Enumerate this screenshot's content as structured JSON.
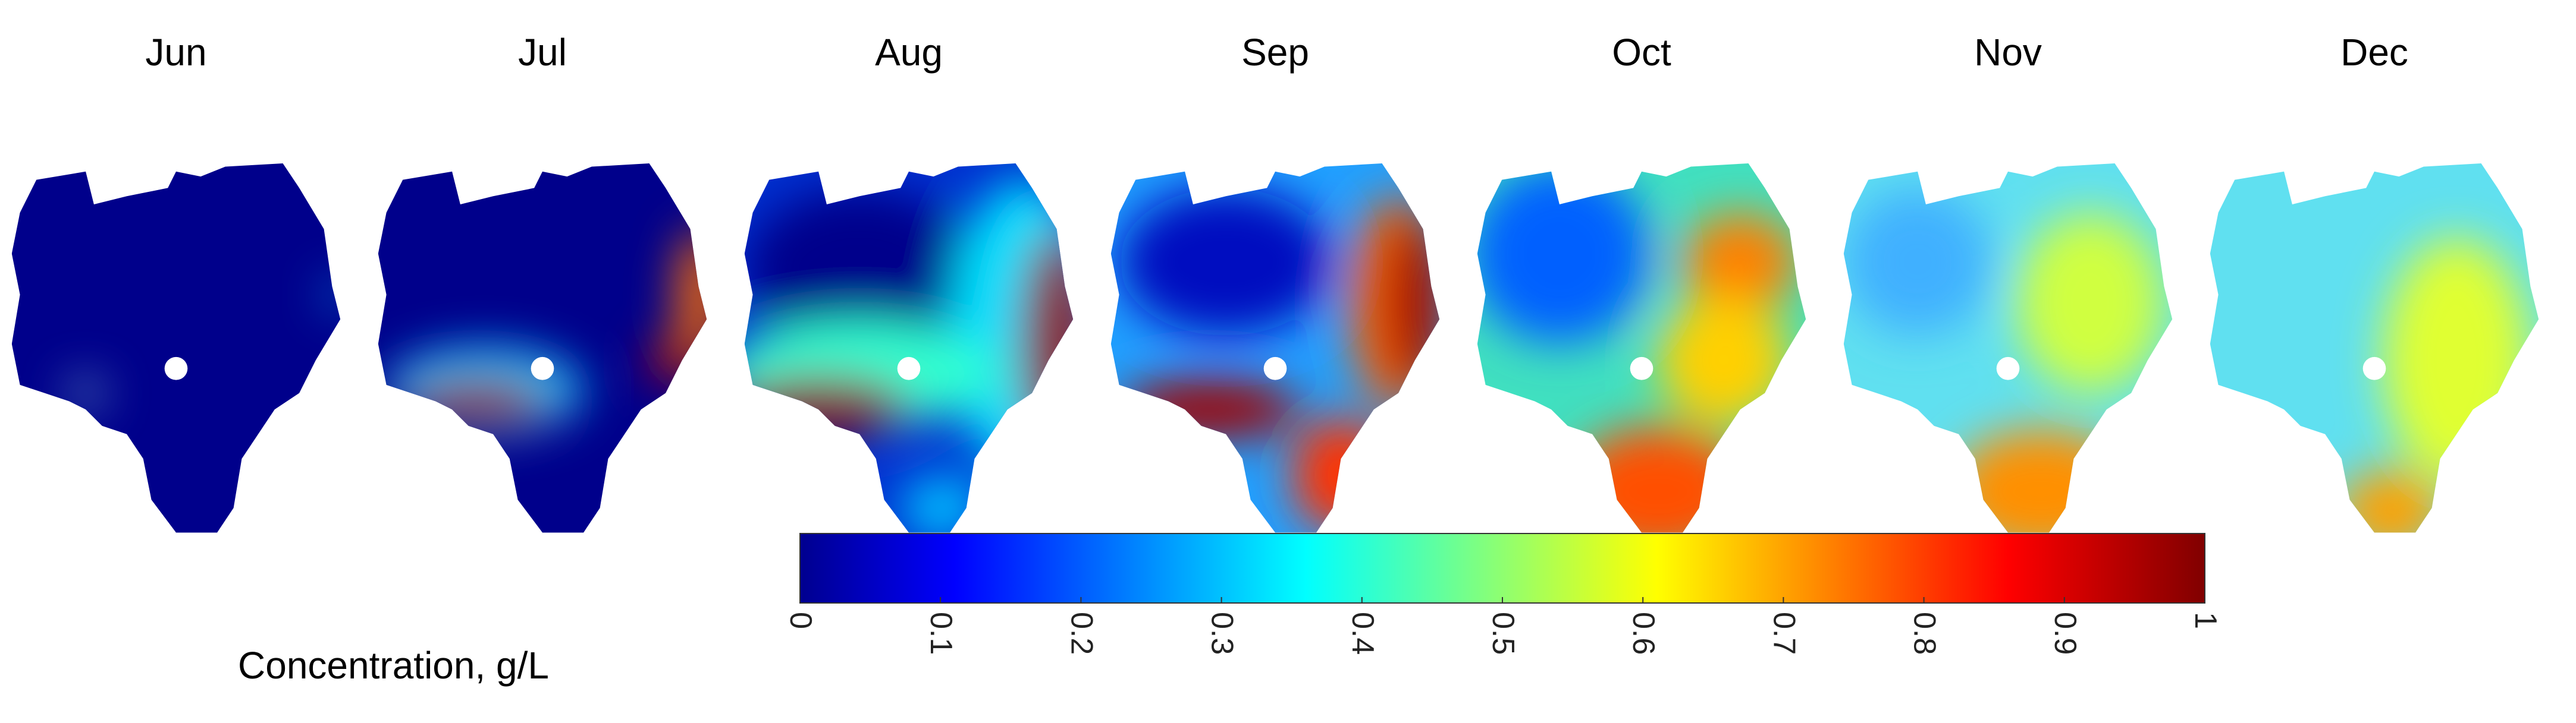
{
  "panels": [
    {
      "title": "Jun"
    },
    {
      "title": "Jul"
    },
    {
      "title": "Aug"
    },
    {
      "title": "Sep"
    },
    {
      "title": "Oct"
    },
    {
      "title": "Nov"
    },
    {
      "title": "Dec"
    }
  ],
  "colorbar": {
    "label": "Concentration, g/L",
    "lim": [
      0,
      1
    ],
    "ticks": [
      0,
      0.1,
      0.2,
      0.3,
      0.4,
      0.5,
      0.6,
      0.7,
      0.8,
      0.9,
      1
    ]
  }
}
